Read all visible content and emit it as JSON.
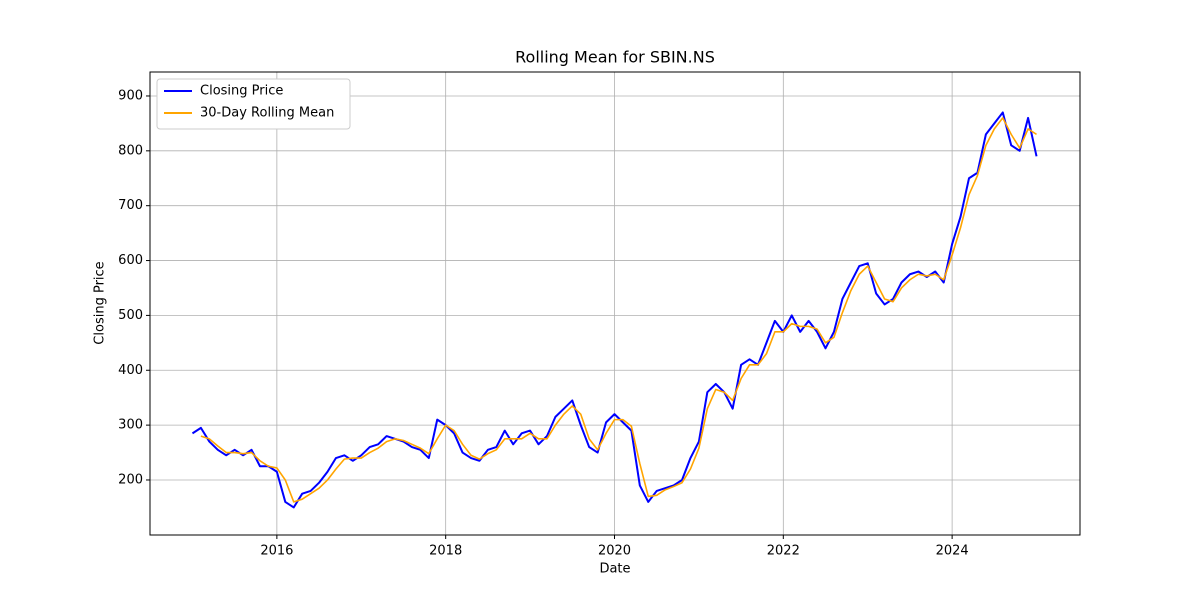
{
  "chart_data": {
    "type": "line",
    "title": "Rolling Mean for SBIN.NS",
    "x_label": "Date",
    "y_label": "Closing Price",
    "x": [
      2015.0,
      2015.1,
      2015.2,
      2015.3,
      2015.4,
      2015.5,
      2015.6,
      2015.7,
      2015.8,
      2015.9,
      2016.0,
      2016.1,
      2016.2,
      2016.3,
      2016.4,
      2016.5,
      2016.6,
      2016.7,
      2016.8,
      2016.9,
      2017.0,
      2017.1,
      2017.2,
      2017.3,
      2017.4,
      2017.5,
      2017.6,
      2017.7,
      2017.8,
      2017.9,
      2018.0,
      2018.1,
      2018.2,
      2018.3,
      2018.4,
      2018.5,
      2018.6,
      2018.7,
      2018.8,
      2018.9,
      2019.0,
      2019.1,
      2019.2,
      2019.3,
      2019.4,
      2019.5,
      2019.6,
      2019.7,
      2019.8,
      2019.9,
      2020.0,
      2020.1,
      2020.2,
      2020.3,
      2020.4,
      2020.5,
      2020.6,
      2020.7,
      2020.8,
      2020.9,
      2021.0,
      2021.1,
      2021.2,
      2021.3,
      2021.4,
      2021.5,
      2021.6,
      2021.7,
      2021.8,
      2021.9,
      2022.0,
      2022.1,
      2022.2,
      2022.3,
      2022.4,
      2022.5,
      2022.6,
      2022.7,
      2022.8,
      2022.9,
      2023.0,
      2023.1,
      2023.2,
      2023.3,
      2023.4,
      2023.5,
      2023.6,
      2023.7,
      2023.8,
      2023.9,
      2024.0,
      2024.1,
      2024.2,
      2024.3,
      2024.4,
      2024.5,
      2024.6,
      2024.7,
      2024.8,
      2024.9,
      2025.0
    ],
    "series": [
      {
        "name": "Closing Price",
        "color": "#0000ff",
        "values": [
          285,
          295,
          270,
          255,
          245,
          255,
          245,
          255,
          225,
          225,
          215,
          160,
          150,
          175,
          180,
          195,
          215,
          240,
          245,
          235,
          245,
          260,
          265,
          280,
          275,
          270,
          260,
          255,
          240,
          310,
          300,
          285,
          250,
          240,
          235,
          255,
          260,
          290,
          265,
          285,
          290,
          265,
          280,
          315,
          330,
          345,
          300,
          260,
          250,
          305,
          320,
          305,
          290,
          190,
          160,
          180,
          185,
          190,
          200,
          240,
          270,
          360,
          375,
          360,
          330,
          410,
          420,
          410,
          450,
          490,
          470,
          500,
          470,
          490,
          470,
          440,
          470,
          530,
          560,
          590,
          595,
          540,
          520,
          530,
          560,
          575,
          580,
          570,
          580,
          560,
          630,
          680,
          750,
          760,
          830,
          850,
          870,
          810,
          800,
          860,
          790
        ]
      },
      {
        "name": "30-Day Rolling Mean",
        "color": "#ffa500",
        "values": [
          null,
          280,
          275,
          262,
          250,
          250,
          248,
          250,
          235,
          225,
          222,
          200,
          160,
          165,
          175,
          185,
          200,
          220,
          238,
          240,
          240,
          250,
          258,
          270,
          275,
          272,
          265,
          258,
          248,
          275,
          300,
          290,
          265,
          245,
          238,
          248,
          255,
          275,
          275,
          275,
          285,
          275,
          275,
          300,
          320,
          335,
          320,
          275,
          255,
          285,
          310,
          310,
          298,
          230,
          170,
          172,
          182,
          188,
          195,
          220,
          258,
          330,
          365,
          360,
          345,
          385,
          410,
          410,
          430,
          470,
          470,
          485,
          480,
          480,
          475,
          450,
          460,
          505,
          545,
          575,
          590,
          560,
          530,
          525,
          550,
          565,
          575,
          572,
          575,
          565,
          610,
          660,
          720,
          755,
          810,
          840,
          860,
          830,
          805,
          840,
          830
        ]
      }
    ],
    "xlim": [
      2014.497,
      2025.515
    ],
    "xticks": [
      2016,
      2018,
      2020,
      2022,
      2024
    ],
    "ylim": [
      99.7,
      943.7
    ],
    "yticks": [
      200,
      300,
      400,
      500,
      600,
      700,
      800,
      900
    ],
    "grid": true,
    "legend": "upper-left"
  }
}
